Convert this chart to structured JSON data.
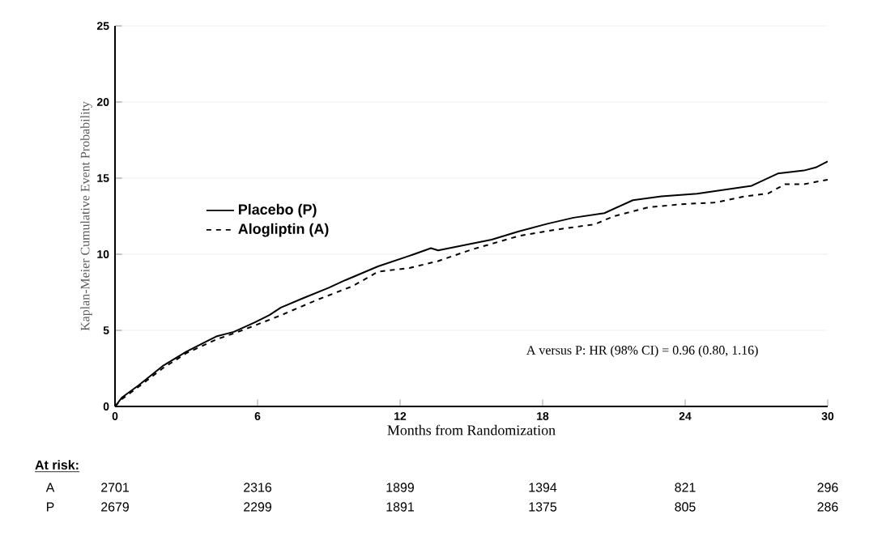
{
  "chart_data": {
    "type": "line",
    "xlabel": "Months from Randomization",
    "ylabel": "Kaplan-Meier Cumulative Event Probability",
    "xlim": [
      0,
      30
    ],
    "ylim": [
      0,
      25
    ],
    "xticks": [
      0,
      6,
      12,
      18,
      24,
      30
    ],
    "yticks": [
      0,
      5,
      10,
      15,
      20,
      25
    ],
    "grid": "y",
    "legend": "left",
    "series": [
      {
        "name": "Placebo (P)",
        "color": "#000000",
        "line_style": "solid",
        "x": [
          0,
          0.3,
          1,
          2,
          3,
          4.26,
          5.0,
          5.85,
          6.5,
          6.98,
          7.9,
          9.0,
          9.7,
          11.07,
          12.4,
          13.3,
          13.6,
          15.85,
          17.0,
          18.2,
          19.3,
          20.6,
          21.8,
          23.0,
          24.5,
          25.5,
          26.8,
          27.9,
          29.0,
          29.5,
          30
        ],
        "values": [
          0,
          0.6,
          1.4,
          2.65,
          3.6,
          4.6,
          4.9,
          5.5,
          6.0,
          6.5,
          7.1,
          7.8,
          8.3,
          9.2,
          9.9,
          10.4,
          10.25,
          10.96,
          11.5,
          12.0,
          12.4,
          12.7,
          13.55,
          13.8,
          13.97,
          14.2,
          14.5,
          15.3,
          15.5,
          15.7,
          16.1
        ]
      },
      {
        "name": "Alogliptin (A)",
        "color": "#000000",
        "line_style": "dashed",
        "x": [
          0,
          0.3,
          1,
          2,
          3,
          4.26,
          5.0,
          5.85,
          7.0,
          8.5,
          10.0,
          11.07,
          12.4,
          13.6,
          15.0,
          17.0,
          18.5,
          20.2,
          21.0,
          22.5,
          24.0,
          25.3,
          26.5,
          27.5,
          28.2,
          29.0,
          30
        ],
        "values": [
          0,
          0.5,
          1.3,
          2.5,
          3.5,
          4.4,
          4.8,
          5.3,
          6.0,
          7.0,
          7.9,
          8.85,
          9.1,
          9.55,
          10.3,
          11.2,
          11.6,
          11.97,
          12.5,
          13.1,
          13.3,
          13.4,
          13.8,
          14.0,
          14.6,
          14.6,
          14.9
        ]
      }
    ],
    "annotations": [
      "A versus P: HR (98% CI) = 0.96 (0.80, 1.16)",
      "At risk:",
      "A",
      "2701",
      "2316",
      "1899",
      "1394",
      "821",
      "296",
      "P",
      "2679",
      "2299",
      "1891",
      "1375",
      "805",
      "286"
    ]
  }
}
